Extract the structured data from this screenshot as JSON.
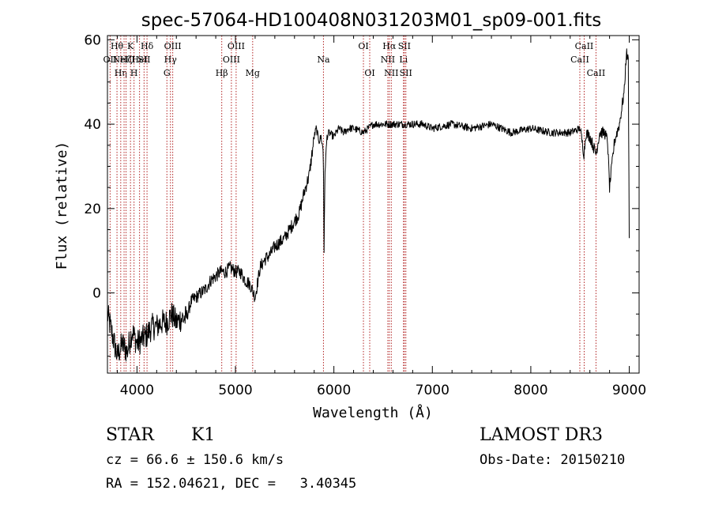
{
  "chart_data": {
    "type": "line",
    "title": "spec-57064-HD100408N031203M01_sp09-001.fits",
    "xlabel": "Wavelength (Å)",
    "ylabel": "Flux (relative)",
    "xlim": [
      3700,
      9100
    ],
    "ylim": [
      -19,
      61
    ],
    "xticks": [
      4000,
      5000,
      6000,
      7000,
      8000,
      9000
    ],
    "yticks": [
      0,
      20,
      40,
      60
    ],
    "series": [
      {
        "name": "spectrum",
        "x": [
          3700,
          3750,
          3800,
          3850,
          3900,
          3950,
          4000,
          4050,
          4100,
          4150,
          4200,
          4250,
          4300,
          4350,
          4400,
          4450,
          4500,
          4550,
          4600,
          4650,
          4700,
          4750,
          4800,
          4850,
          4900,
          4950,
          5000,
          5050,
          5100,
          5150,
          5200,
          5250,
          5300,
          5350,
          5400,
          5450,
          5500,
          5550,
          5600,
          5650,
          5700,
          5750,
          5800,
          5820,
          5850,
          5870,
          5890,
          5895,
          5900,
          5910,
          5930,
          5950,
          6000,
          6050,
          6100,
          6150,
          6200,
          6300,
          6400,
          6500,
          6600,
          6700,
          6800,
          6900,
          7000,
          7200,
          7400,
          7600,
          7800,
          8000,
          8200,
          8400,
          8500,
          8540,
          8560,
          8600,
          8662,
          8700,
          8750,
          8780,
          8800,
          8850,
          8900,
          8950,
          8970,
          8990,
          9000
        ],
        "values": [
          -5,
          -10,
          -15,
          -12,
          -14,
          -9,
          -12,
          -11,
          -10,
          -8,
          -8,
          -7,
          -7,
          -5,
          -7,
          -6,
          -6,
          -2,
          -1,
          0,
          1,
          3,
          4,
          5,
          5,
          6,
          5,
          5,
          3,
          2,
          -1,
          6,
          8,
          9,
          11,
          12,
          13,
          15,
          17,
          19,
          24,
          28,
          37,
          39,
          36,
          37,
          34,
          27,
          10,
          29,
          37,
          38,
          37,
          39,
          38,
          39,
          39,
          38,
          40,
          40,
          40,
          40,
          40,
          40,
          39,
          40,
          39,
          40,
          38,
          39,
          38,
          38,
          39,
          33,
          38,
          37,
          33,
          38,
          38,
          36,
          25,
          36,
          40,
          48,
          57,
          55,
          13
        ]
      }
    ],
    "lines": [
      {
        "x": 3727,
        "label": "OII",
        "row": 2
      },
      {
        "x": 3797,
        "label": "Hθ",
        "row": 1
      },
      {
        "x": 3835,
        "label": "Hη",
        "row": 3
      },
      {
        "x": 3869,
        "label": "NeIII",
        "row": 2
      },
      {
        "x": 3889,
        "label": "Hζ",
        "row": 2
      },
      {
        "x": 3934,
        "label": "K",
        "row": 1
      },
      {
        "x": 3970,
        "label": "H",
        "row": 3
      },
      {
        "x": 4026,
        "label": "HeI",
        "row": 2
      },
      {
        "x": 4072,
        "label": "SII",
        "row": 2
      },
      {
        "x": 4102,
        "label": "Hδ",
        "row": 1
      },
      {
        "x": 4304,
        "label": "G",
        "row": 3
      },
      {
        "x": 4340,
        "label": "Hγ",
        "row": 2
      },
      {
        "x": 4363,
        "label": "OIII",
        "row": 1
      },
      {
        "x": 4861,
        "label": "Hβ",
        "row": 3
      },
      {
        "x": 4959,
        "label": "OIII",
        "row": 2
      },
      {
        "x": 5007,
        "label": "OIII",
        "row": 1
      },
      {
        "x": 5175,
        "label": "Mg",
        "row": 3
      },
      {
        "x": 5894,
        "label": "Na",
        "row": 2
      },
      {
        "x": 6300,
        "label": "OI",
        "row": 1
      },
      {
        "x": 6364,
        "label": "OI",
        "row": 3
      },
      {
        "x": 6548,
        "label": "NII",
        "row": 2
      },
      {
        "x": 6563,
        "label": "Hα",
        "row": 1
      },
      {
        "x": 6583,
        "label": "NII",
        "row": 3
      },
      {
        "x": 6707,
        "label": "Li",
        "row": 2
      },
      {
        "x": 6716,
        "label": "SII",
        "row": 1
      },
      {
        "x": 6731,
        "label": "SII",
        "row": 3
      },
      {
        "x": 8498,
        "label": "CaII",
        "row": 2
      },
      {
        "x": 8542,
        "label": "CaII",
        "row": 1
      },
      {
        "x": 8662,
        "label": "CaII",
        "row": 3
      }
    ],
    "line_color": "#b22222",
    "spectrum_color": "#000000",
    "grid": false
  },
  "info": {
    "object_class": "STAR",
    "subclass": "K1",
    "survey": "LAMOST DR3",
    "cz": "cz = 66.6 ± 150.6 km/s",
    "obs_date": "Obs-Date: 20150210",
    "coords": "RA = 152.04621, DEC =   3.40345"
  }
}
